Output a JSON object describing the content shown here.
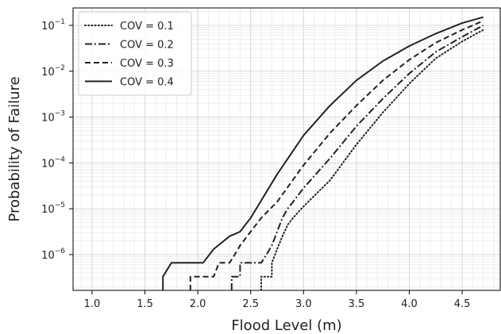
{
  "chart_data": {
    "type": "line",
    "title": "",
    "xlabel": "Flood Level (m)",
    "ylabel": "Probability of Failure",
    "xlim": [
      0.82,
      4.86
    ],
    "ylim_log10": [
      -6.78,
      -0.62
    ],
    "yscale": "log",
    "grid": true,
    "legend_position": "top-left",
    "x_ticks": [
      {
        "v": 1.0,
        "label": "1.0"
      },
      {
        "v": 1.5,
        "label": "1.5"
      },
      {
        "v": 2.0,
        "label": "2.0"
      },
      {
        "v": 2.5,
        "label": "2.5"
      },
      {
        "v": 3.0,
        "label": "3.0"
      },
      {
        "v": 3.5,
        "label": "3.5"
      },
      {
        "v": 4.0,
        "label": "4.0"
      },
      {
        "v": 4.5,
        "label": "4.5"
      }
    ],
    "y_ticks": [
      {
        "exp": -1,
        "base": "10",
        "sup": "−1"
      },
      {
        "exp": -2,
        "base": "10",
        "sup": "−2"
      },
      {
        "exp": -3,
        "base": "10",
        "sup": "−3"
      },
      {
        "exp": -4,
        "base": "10",
        "sup": "−4"
      },
      {
        "exp": -5,
        "base": "10",
        "sup": "−5"
      },
      {
        "exp": -6,
        "base": "10",
        "sup": "−6"
      }
    ],
    "series": [
      {
        "name": "COV = 0.1",
        "dash": "dotted",
        "x": [
          2.6,
          2.6,
          2.7,
          2.7,
          2.75,
          2.8,
          2.85,
          2.9,
          3.0,
          3.25,
          3.5,
          3.75,
          4.0,
          4.25,
          4.5,
          4.7
        ],
        "log10_p": [
          -6.78,
          -6.48,
          -6.48,
          -6.18,
          -5.88,
          -5.6,
          -5.35,
          -5.2,
          -4.95,
          -4.38,
          -3.6,
          -2.9,
          -2.27,
          -1.72,
          -1.35,
          -1.1
        ]
      },
      {
        "name": "COV = 0.2",
        "dash": "dashdot",
        "x": [
          2.32,
          2.32,
          2.4,
          2.4,
          2.5,
          2.5,
          2.6,
          2.65,
          2.7,
          2.75,
          2.8,
          2.85,
          2.9,
          3.0,
          3.25,
          3.5,
          3.75,
          4.0,
          4.25,
          4.5,
          4.7
        ],
        "log10_p": [
          -6.78,
          -6.48,
          -6.48,
          -6.18,
          -6.18,
          -6.18,
          -6.18,
          -6.0,
          -5.8,
          -5.5,
          -5.2,
          -5.0,
          -4.85,
          -4.55,
          -3.9,
          -3.2,
          -2.6,
          -2.05,
          -1.58,
          -1.25,
          -1.0
        ]
      },
      {
        "name": "COV = 0.3",
        "dash": "dashed",
        "x": [
          1.93,
          1.93,
          2.0,
          2.15,
          2.2,
          2.3,
          2.35,
          2.4,
          2.5,
          2.6,
          2.75,
          3.0,
          3.25,
          3.5,
          3.75,
          4.0,
          4.25,
          4.5,
          4.7
        ],
        "log10_p": [
          -6.78,
          -6.48,
          -6.48,
          -6.48,
          -6.18,
          -6.18,
          -6.0,
          -5.8,
          -5.5,
          -5.2,
          -4.85,
          -4.05,
          -3.35,
          -2.75,
          -2.2,
          -1.75,
          -1.38,
          -1.1,
          -0.9
        ]
      },
      {
        "name": "COV = 0.4",
        "dash": "solid",
        "x": [
          1.67,
          1.67,
          1.75,
          2.05,
          2.15,
          2.3,
          2.4,
          2.5,
          2.75,
          3.0,
          3.25,
          3.5,
          3.75,
          4.0,
          4.25,
          4.5,
          4.7
        ],
        "log10_p": [
          -6.78,
          -6.48,
          -6.18,
          -6.18,
          -5.88,
          -5.6,
          -5.5,
          -5.2,
          -4.25,
          -3.4,
          -2.75,
          -2.2,
          -1.78,
          -1.45,
          -1.18,
          -0.95,
          -0.82
        ]
      }
    ]
  }
}
